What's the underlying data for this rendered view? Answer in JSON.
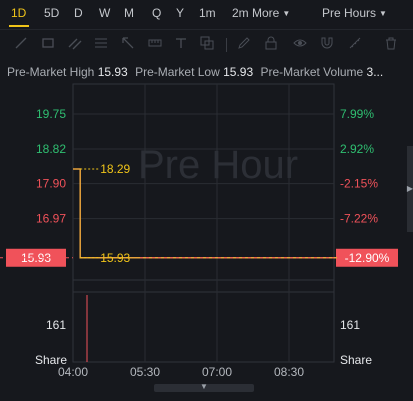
{
  "timeframes": [
    "1D",
    "5D",
    "D",
    "W",
    "M",
    "Q",
    "Y",
    "1m"
  ],
  "more_label": "2m More",
  "session_label": "Pre Hours",
  "info": {
    "high_label": "Pre-Market High",
    "high_value": "15.93",
    "low_label": "Pre-Market Low",
    "low_value": "15.93",
    "volume_label": "Pre-Market Volume",
    "volume_value": "3..."
  },
  "tools": [
    "line-tool-icon",
    "rectangle-tool-icon",
    "lines-tool-icon",
    "fib-tool-icon",
    "arrow-tool-icon",
    "measure-tool-icon",
    "text-tool-icon",
    "layers-icon",
    "lock-icon",
    "pen-icon",
    "eye-icon",
    "magnet-icon",
    "trash-icon"
  ],
  "colors": {
    "up": "#2fbf71",
    "down": "#f0525a",
    "accent": "#f0c419",
    "price_line": "#e8a33c",
    "price_tag": "#f0525a"
  },
  "chart_data": {
    "type": "line",
    "watermark": "Pre Hour",
    "x_ticks": [
      "04:00",
      "05:30",
      "07:00",
      "08:30"
    ],
    "price_ticks": [
      "19.75",
      "18.82",
      "17.90",
      "16.97"
    ],
    "pct_ticks": [
      "7.99%",
      "2.92%",
      "-2.15%",
      "-7.22%"
    ],
    "current": {
      "price": "15.93",
      "pct": "-12.90%"
    },
    "price_series": [
      {
        "x": "04:00",
        "y": 18.29
      },
      {
        "x": "04:09",
        "y": 18.29
      },
      {
        "x": "04:09",
        "y": 15.93
      },
      {
        "x": "09:30",
        "y": 15.93
      }
    ],
    "markers": [
      {
        "label": "18.29",
        "y": 18.29
      },
      {
        "label": "15.93",
        "y": 15.93
      }
    ],
    "volume": {
      "tick_label": "161",
      "unit_label": "Share"
    }
  }
}
